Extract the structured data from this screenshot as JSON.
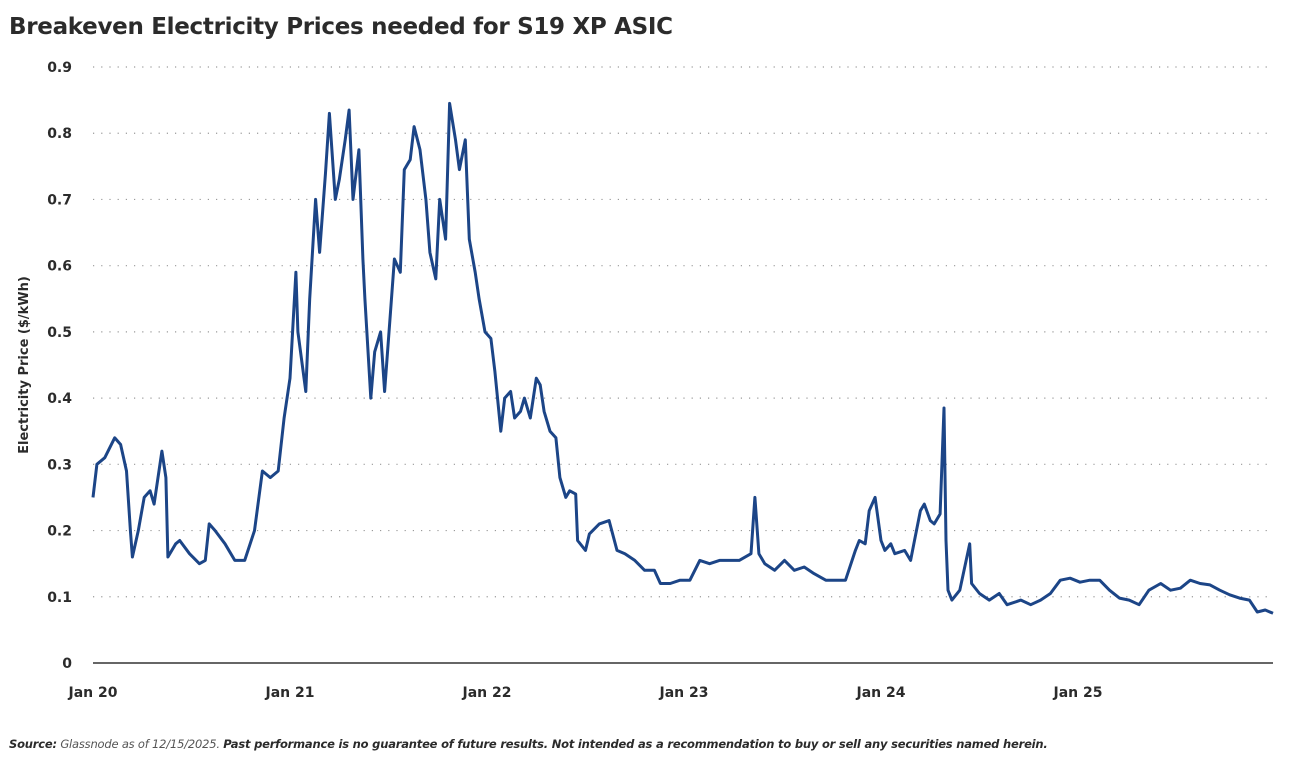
{
  "chart_data": {
    "type": "line",
    "title": "Breakeven Electricity Prices needed for S19 XP ASIC",
    "xlabel": "",
    "ylabel": "Electricity Price ($/kWh)",
    "ylim": [
      0,
      0.9
    ],
    "xlim": [
      2020.0,
      2025.99
    ],
    "yticks": [
      "0",
      "0.1",
      "0.2",
      "0.3",
      "0.4",
      "0.5",
      "0.6",
      "0.7",
      "0.8",
      "0.9"
    ],
    "xticks": [
      {
        "label": "Jan 20",
        "value": 2020
      },
      {
        "label": "Jan 21",
        "value": 2021
      },
      {
        "label": "Jan 22",
        "value": 2022
      },
      {
        "label": "Jan 23",
        "value": 2023
      },
      {
        "label": "Jan 24",
        "value": 2024
      },
      {
        "label": "Jan 25",
        "value": 2025
      }
    ],
    "grid": "horizontal-dotted",
    "line_color": "#1c4587",
    "series": [
      {
        "name": "Breakeven Electricity Price",
        "x": [
          2020.0,
          2020.02,
          2020.06,
          2020.11,
          2020.14,
          2020.17,
          2020.19,
          2020.2,
          2020.23,
          2020.26,
          2020.29,
          2020.31,
          2020.35,
          2020.37,
          2020.38,
          2020.42,
          2020.44,
          2020.49,
          2020.54,
          2020.57,
          2020.59,
          2020.62,
          2020.67,
          2020.72,
          2020.77,
          2020.82,
          2020.86,
          2020.9,
          2020.94,
          2020.97,
          2021.0,
          2021.03,
          2021.04,
          2021.08,
          2021.1,
          2021.13,
          2021.15,
          2021.18,
          2021.2,
          2021.23,
          2021.25,
          2021.28,
          2021.3,
          2021.32,
          2021.35,
          2021.37,
          2021.38,
          2021.41,
          2021.43,
          2021.46,
          2021.48,
          2021.51,
          2021.53,
          2021.56,
          2021.58,
          2021.61,
          2021.63,
          2021.66,
          2021.69,
          2021.71,
          2021.74,
          2021.76,
          2021.79,
          2021.81,
          2021.84,
          2021.86,
          2021.89,
          2021.91,
          2021.94,
          2021.96,
          2021.99,
          2022.02,
          2022.04,
          2022.07,
          2022.09,
          2022.12,
          2022.14,
          2022.17,
          2022.19,
          2022.22,
          2022.25,
          2022.27,
          2022.29,
          2022.32,
          2022.35,
          2022.37,
          2022.4,
          2022.42,
          2022.45,
          2022.46,
          2022.5,
          2022.52,
          2022.57,
          2022.62,
          2022.66,
          2022.7,
          2022.75,
          2022.8,
          2022.85,
          2022.88,
          2022.93,
          2022.98,
          2023.03,
          2023.08,
          2023.13,
          2023.18,
          2023.23,
          2023.28,
          2023.34,
          2023.36,
          2023.38,
          2023.41,
          2023.46,
          2023.51,
          2023.56,
          2023.61,
          2023.66,
          2023.72,
          2023.77,
          2023.82,
          2023.87,
          2023.89,
          2023.92,
          2023.94,
          2023.97,
          2024.0,
          2024.02,
          2024.05,
          2024.07,
          2024.12,
          2024.15,
          2024.17,
          2024.2,
          2024.22,
          2024.25,
          2024.27,
          2024.3,
          2024.32,
          2024.33,
          2024.34,
          2024.36,
          2024.4,
          2024.45,
          2024.46,
          2024.5,
          2024.55,
          2024.6,
          2024.64,
          2024.71,
          2024.76,
          2024.81,
          2024.86,
          2024.91,
          2024.96,
          2025.01,
          2025.06,
          2025.11,
          2025.16,
          2025.21,
          2025.26,
          2025.31,
          2025.36,
          2025.42,
          2025.47,
          2025.52,
          2025.57,
          2025.62,
          2025.67,
          2025.72,
          2025.77,
          2025.82,
          2025.87,
          2025.91,
          2025.95,
          2025.99
        ],
        "y": [
          0.25,
          0.3,
          0.31,
          0.34,
          0.33,
          0.29,
          0.2,
          0.16,
          0.2,
          0.25,
          0.26,
          0.24,
          0.32,
          0.28,
          0.16,
          0.18,
          0.185,
          0.165,
          0.15,
          0.155,
          0.21,
          0.2,
          0.18,
          0.155,
          0.155,
          0.2,
          0.29,
          0.28,
          0.29,
          0.37,
          0.43,
          0.59,
          0.5,
          0.41,
          0.55,
          0.7,
          0.62,
          0.74,
          0.83,
          0.7,
          0.73,
          0.79,
          0.835,
          0.7,
          0.775,
          0.61,
          0.55,
          0.4,
          0.47,
          0.5,
          0.41,
          0.53,
          0.61,
          0.59,
          0.745,
          0.76,
          0.81,
          0.775,
          0.7,
          0.62,
          0.58,
          0.7,
          0.64,
          0.845,
          0.79,
          0.745,
          0.79,
          0.64,
          0.59,
          0.55,
          0.5,
          0.49,
          0.44,
          0.35,
          0.4,
          0.41,
          0.37,
          0.38,
          0.4,
          0.37,
          0.43,
          0.42,
          0.38,
          0.35,
          0.34,
          0.28,
          0.25,
          0.26,
          0.255,
          0.185,
          0.17,
          0.195,
          0.21,
          0.215,
          0.17,
          0.165,
          0.155,
          0.14,
          0.14,
          0.12,
          0.12,
          0.125,
          0.125,
          0.155,
          0.15,
          0.155,
          0.155,
          0.155,
          0.165,
          0.25,
          0.165,
          0.15,
          0.14,
          0.155,
          0.14,
          0.145,
          0.135,
          0.125,
          0.125,
          0.125,
          0.17,
          0.185,
          0.18,
          0.23,
          0.25,
          0.185,
          0.17,
          0.18,
          0.165,
          0.17,
          0.155,
          0.185,
          0.23,
          0.24,
          0.215,
          0.21,
          0.225,
          0.385,
          0.185,
          0.11,
          0.095,
          0.11,
          0.18,
          0.12,
          0.105,
          0.095,
          0.105,
          0.088,
          0.095,
          0.088,
          0.095,
          0.105,
          0.125,
          0.128,
          0.122,
          0.125,
          0.125,
          0.11,
          0.098,
          0.095,
          0.088,
          0.11,
          0.12,
          0.11,
          0.113,
          0.125,
          0.12,
          0.118,
          0.11,
          0.103,
          0.098,
          0.095,
          0.077,
          0.08,
          0.075
        ]
      }
    ]
  },
  "footer": {
    "source_label": "Source:",
    "source_text": "Glassnode as of 12/15/2025.",
    "disclaimer": "Past performance is no guarantee of future results. Not intended as a recommendation to buy or sell any securities named herein."
  }
}
